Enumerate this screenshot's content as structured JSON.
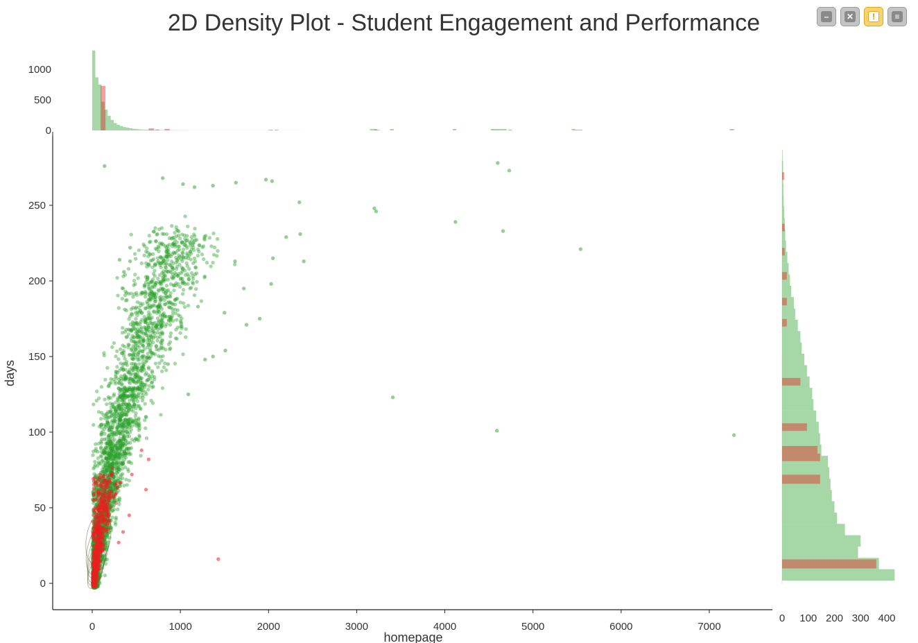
{
  "window": {
    "title": "2D Density Plot - Student Engagement and Performance",
    "toolbar": [
      {
        "name": "minimize-button",
        "icon": "minus-icon",
        "symbol": "–"
      },
      {
        "name": "fullscreen-button",
        "icon": "expand-icon",
        "symbol": "✕"
      },
      {
        "name": "warning-button",
        "icon": "exclamation-icon",
        "symbol": "!"
      },
      {
        "name": "menu-button",
        "icon": "hamburger-menu-icon",
        "symbol": "≡"
      }
    ]
  },
  "chart_data": {
    "type": "scatter",
    "title": "2D Density Plot - Student Engagement and Performance",
    "xlabel": "homepage",
    "ylabel": "days",
    "xlim": [
      -450,
      7650
    ],
    "ylim": [
      -17,
      285
    ],
    "x_ticks": [
      0,
      1000,
      2000,
      3000,
      4000,
      5000,
      6000,
      7000
    ],
    "y_ticks": [
      0,
      50,
      100,
      150,
      200,
      250
    ],
    "grid": false,
    "series": [
      {
        "color": "#2ca02c"
      },
      {
        "color": "#e8201f"
      }
    ],
    "scatter_green_outliers": [
      [
        140,
        276
      ],
      [
        800,
        268
      ],
      [
        1030,
        264
      ],
      [
        1160,
        262
      ],
      [
        1370,
        263
      ],
      [
        1630,
        265
      ],
      [
        1970,
        267
      ],
      [
        2040,
        266
      ],
      [
        2350,
        252
      ],
      [
        4600,
        278
      ],
      [
        4730,
        273
      ],
      [
        3200,
        248
      ],
      [
        3220,
        246
      ],
      [
        4120,
        239
      ],
      [
        4660,
        233
      ],
      [
        5540,
        221
      ],
      [
        2360,
        231
      ],
      [
        2200,
        229
      ],
      [
        2400,
        213
      ],
      [
        2050,
        215
      ],
      [
        2030,
        198
      ],
      [
        1620,
        213
      ],
      [
        1720,
        195
      ],
      [
        1900,
        175
      ],
      [
        1750,
        171
      ],
      [
        1500,
        179
      ],
      [
        1200,
        183
      ],
      [
        1370,
        150
      ],
      [
        1280,
        148
      ],
      [
        1510,
        154
      ],
      [
        3410,
        123
      ],
      [
        4590,
        101
      ],
      [
        7280,
        98
      ],
      [
        1090,
        125
      ],
      [
        860,
        145
      ],
      [
        430,
        222
      ],
      [
        430,
        213
      ],
      [
        310,
        214
      ],
      [
        360,
        206
      ]
    ],
    "scatter_red_outliers": [
      [
        1430,
        16
      ],
      [
        640,
        82
      ],
      [
        560,
        88
      ],
      [
        610,
        62
      ],
      [
        450,
        72
      ],
      [
        420,
        45
      ],
      [
        350,
        34
      ],
      [
        300,
        27
      ]
    ],
    "top_histogram": {
      "axis_ticks": [
        0,
        500,
        1000
      ],
      "green": [
        1320,
        870,
        750,
        470,
        340,
        240,
        170,
        120,
        90,
        70,
        55,
        45,
        35,
        27,
        22,
        17,
        13,
        11,
        9,
        8,
        7,
        6,
        5,
        5,
        4,
        4,
        4,
        3,
        3,
        3,
        2,
        2,
        2,
        2,
        2,
        2,
        2,
        2,
        1,
        1,
        1,
        1,
        1,
        1,
        1,
        1,
        1,
        1,
        1,
        1,
        1,
        1,
        1,
        1,
        1,
        1,
        1,
        1,
        1,
        1,
        1,
        1,
        1,
        1,
        1,
        1,
        1,
        1
      ],
      "green_bin_start": 0,
      "green_bin_width": 35,
      "red_bins": [
        {
          "x0": 95,
          "x1": 150,
          "count": 730
        },
        {
          "x0": 640,
          "x1": 700,
          "count": 35
        },
        {
          "x0": 720,
          "x1": 760,
          "count": 15
        },
        {
          "x0": 820,
          "x1": 880,
          "count": 25
        },
        {
          "x0": 2000,
          "x1": 2050,
          "count": 12
        },
        {
          "x0": 2070,
          "x1": 2110,
          "count": 12
        },
        {
          "x0": 3200,
          "x1": 3260,
          "count": 10
        },
        {
          "x0": 4720,
          "x1": 4760,
          "count": 12
        },
        {
          "x0": 5480,
          "x1": 5560,
          "count": 12
        }
      ]
    },
    "right_histogram": {
      "axis_ticks": [
        0,
        100,
        200,
        300,
        400
      ],
      "green": [
        430,
        370,
        290,
        300,
        240,
        210,
        200,
        190,
        185,
        180,
        175,
        150,
        145,
        140,
        130,
        120,
        115,
        105,
        95,
        85,
        75,
        70,
        60,
        50,
        45,
        35,
        30,
        25,
        20,
        15,
        12,
        10,
        8,
        6,
        5,
        4,
        4,
        2
      ],
      "green_bin_start": 0,
      "green_bin_width": 7.5,
      "red_bins": [
        {
          "y0": 8,
          "y1": 14,
          "count": 360
        },
        {
          "y0": 64,
          "y1": 70,
          "count": 145
        },
        {
          "y0": 79,
          "y1": 84,
          "count": 145
        },
        {
          "y0": 84,
          "y1": 89,
          "count": 135
        },
        {
          "y0": 99,
          "y1": 104,
          "count": 95
        },
        {
          "y0": 129,
          "y1": 134,
          "count": 70
        },
        {
          "y0": 168,
          "y1": 173,
          "count": 18
        },
        {
          "y0": 182,
          "y1": 187,
          "count": 18
        },
        {
          "y0": 199,
          "y1": 204,
          "count": 18
        },
        {
          "y0": 215,
          "y1": 220,
          "count": 10
        },
        {
          "y0": 231,
          "y1": 236,
          "count": 10
        },
        {
          "y0": 265,
          "y1": 270,
          "count": 8
        }
      ]
    }
  }
}
